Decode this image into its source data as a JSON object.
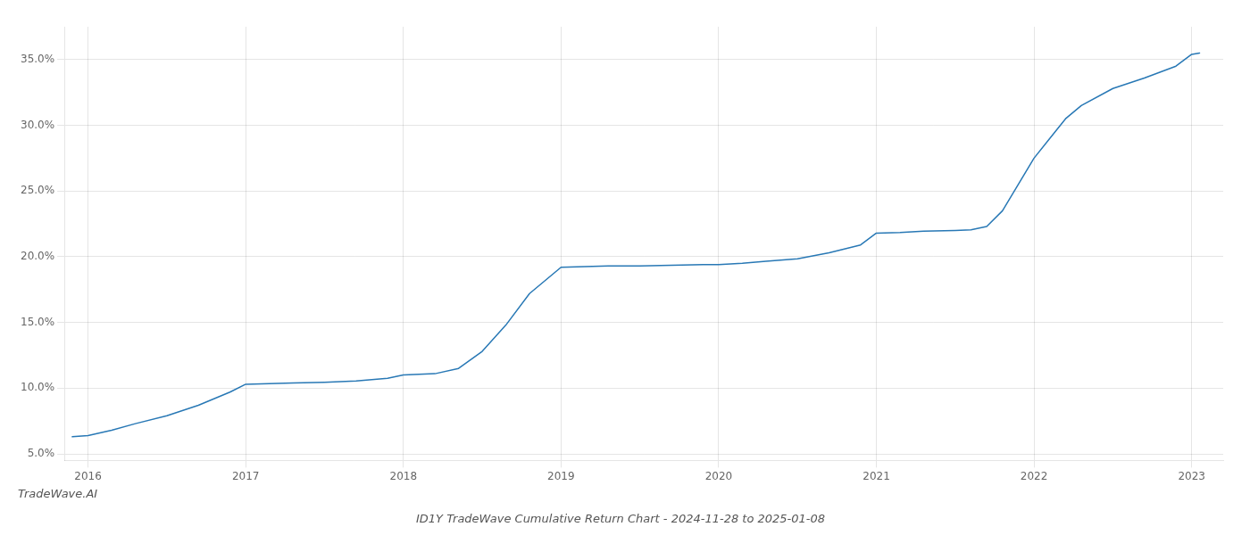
{
  "chart_data": {
    "type": "line",
    "title": "ID1Y TradeWave Cumulative Return Chart - 2024-11-28 to 2025-01-08",
    "annotations": [
      "TradeWave.AI"
    ],
    "x": [
      2015.9,
      2016.0,
      2016.15,
      2016.3,
      2016.5,
      2016.7,
      2016.9,
      2017.0,
      2017.15,
      2017.3,
      2017.5,
      2017.7,
      2017.9,
      2018.0,
      2018.1,
      2018.2,
      2018.35,
      2018.5,
      2018.65,
      2018.8,
      2019.0,
      2019.15,
      2019.3,
      2019.5,
      2019.7,
      2019.9,
      2020.0,
      2020.15,
      2020.3,
      2020.5,
      2020.7,
      2020.9,
      2021.0,
      2021.15,
      2021.3,
      2021.5,
      2021.6,
      2021.7,
      2021.8,
      2021.9,
      2022.0,
      2022.1,
      2022.2,
      2022.3,
      2022.5,
      2022.7,
      2022.9,
      2023.0,
      2023.05
    ],
    "values": [
      6.3,
      6.4,
      6.8,
      7.3,
      7.9,
      8.7,
      9.7,
      10.3,
      10.35,
      10.4,
      10.45,
      10.55,
      10.75,
      11.0,
      11.05,
      11.1,
      11.5,
      12.8,
      14.8,
      17.2,
      19.2,
      19.25,
      19.3,
      19.3,
      19.35,
      19.4,
      19.4,
      19.5,
      19.65,
      19.85,
      20.3,
      20.9,
      21.8,
      21.85,
      21.95,
      22.0,
      22.05,
      22.3,
      23.5,
      25.5,
      27.5,
      29.0,
      30.5,
      31.5,
      32.8,
      33.6,
      34.5,
      35.4,
      35.5
    ],
    "color": "#2878b5",
    "xlim": [
      2015.85,
      2023.2
    ],
    "xticks": [
      2016,
      2017,
      2018,
      2019,
      2020,
      2021,
      2022,
      2023
    ],
    "ylim": [
      4.5,
      37.5
    ],
    "yticks": [
      {
        "value": 5.0,
        "label": "5.0%"
      },
      {
        "value": 10.0,
        "label": "10.0%"
      },
      {
        "value": 15.0,
        "label": "15.0%"
      },
      {
        "value": 20.0,
        "label": "20.0%"
      },
      {
        "value": 25.0,
        "label": "25.0%"
      },
      {
        "value": 30.0,
        "label": "30.0%"
      },
      {
        "value": 35.0,
        "label": "35.0%"
      }
    ],
    "grid": true
  }
}
